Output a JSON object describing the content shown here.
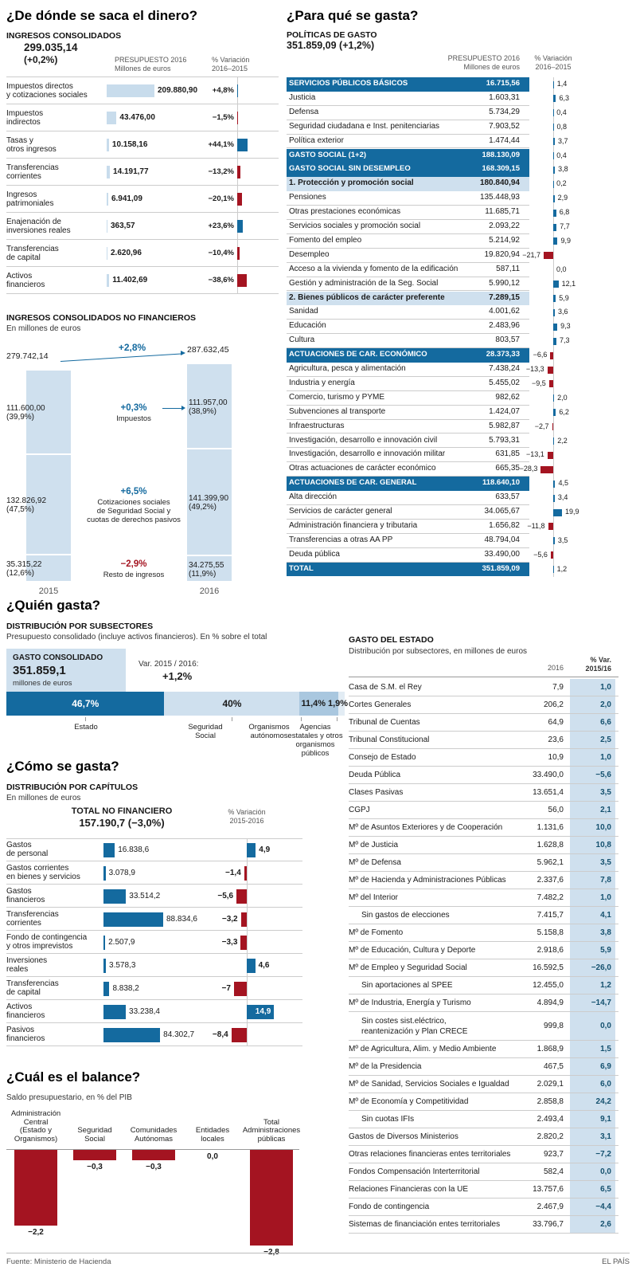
{
  "page": {
    "footer_source": "Fuente:  Ministerio de Hacienda",
    "footer_brand": "EL PAÍS"
  },
  "colors": {
    "blue": "#146a9f",
    "light_blue": "#cfe0ee",
    "bar_blue": "#c8dcec",
    "mid_blue": "#a9c7df",
    "pale_blue": "#e2ecf4",
    "red": "#a41421",
    "navy": "#14506e",
    "line": "#cccccc"
  },
  "chart_data": [
    {
      "id": "ingresos_consolidados",
      "type": "bar",
      "title": "¿De dónde se saca el dinero?",
      "subtitle": "INGRESOS CONSOLIDADOS",
      "total": "299.035,14",
      "total_variation": "(+0,2%)",
      "columns": {
        "c1a": "PRESUPUESTO 2016",
        "c1b": "Millones de euros",
        "c2a": "% Variación",
        "c2b": "2016–2015"
      },
      "rows": [
        {
          "label": "Impuestos directos\ny cotizaciones sociales",
          "value": 209880.9,
          "value_label": "209.880,90",
          "variation": 4.8,
          "variation_label": "+4,8%"
        },
        {
          "label": "Impuestos\nindirectos",
          "value": 43476.0,
          "value_label": "43.476,00",
          "variation": -1.5,
          "variation_label": "−1,5%"
        },
        {
          "label": "Tasas y\notros ingresos",
          "value": 10158.16,
          "value_label": "10.158,16",
          "variation": 44.1,
          "variation_label": "+44,1%"
        },
        {
          "label": "Transferencias\ncorrientes",
          "value": 14191.77,
          "value_label": "14.191,77",
          "variation": -13.2,
          "variation_label": "−13,2%"
        },
        {
          "label": "Ingresos\npatrimoniales",
          "value": 6941.09,
          "value_label": "6.941,09",
          "variation": -20.1,
          "variation_label": "−20,1%"
        },
        {
          "label": "Enajenación de\ninversiones reales",
          "value": 363.57,
          "value_label": "363,57",
          "variation": 23.6,
          "variation_label": "+23,6%"
        },
        {
          "label": "Transferencias\nde capital",
          "value": 2620.96,
          "value_label": "2.620,96",
          "variation": -10.4,
          "variation_label": "−10,4%"
        },
        {
          "label": "Activos\nfinancieros",
          "value": 11402.69,
          "value_label": "11.402,69",
          "variation": -38.6,
          "variation_label": "−38,6%"
        }
      ]
    },
    {
      "id": "ingresos_no_financieros",
      "type": "stacked-bar",
      "title": "INGRESOS CONSOLIDADOS NO FINANCIEROS",
      "subtitle": "En millones de euros",
      "years": [
        "2015",
        "2016"
      ],
      "total_2015": {
        "value": 279742.14,
        "label": "279.742,14"
      },
      "total_2016": {
        "value": 287632.45,
        "label": "287.632,45"
      },
      "total_variation": "+2,8%",
      "segments": [
        {
          "name": "Impuestos",
          "v2015": 111600.0,
          "l2015": "111.600,00",
          "p2015": "(39,9%)",
          "v2016": 111957.0,
          "l2016": "111.957,00",
          "p2016": "(38,9%)",
          "variation": "+0,3%",
          "negative": false,
          "arrow": true
        },
        {
          "name": "Cotizaciones sociales\nde Seguridad Social y\ncuotas de derechos pasivos",
          "v2015": 132826.92,
          "l2015": "132.826,92",
          "p2015": "(47,5%)",
          "v2016": 141399.9,
          "l2016": "141.399,90",
          "p2016": "(49,2%)",
          "variation": "+6,5%",
          "negative": false,
          "arrow": false
        },
        {
          "name": "Resto de ingresos",
          "v2015": 35315.22,
          "l2015": "35.315,22",
          "p2015": "(12,6%)",
          "v2016": 34275.55,
          "l2016": "34.275,55",
          "p2016": "(11,9%)",
          "variation": "−2,9%",
          "negative": true,
          "arrow": false
        }
      ]
    },
    {
      "id": "politicas_de_gasto",
      "type": "table",
      "title": "¿Para qué se gasta?",
      "subtitle": "POLÍTICAS DE GASTO",
      "total": "351.859,09 (+1,2%)",
      "columns": {
        "c1a": "PRESUPUESTO 2016",
        "c1b": "Millones de euros",
        "c2a": "% Variación",
        "c2b": "2016–2015"
      },
      "rows": [
        {
          "style": "header",
          "label": "SERVICIOS PÚBLICOS BÁSICOS",
          "value_label": "16.715,56",
          "variation": 1.4,
          "variation_label": "1,4"
        },
        {
          "style": "normal",
          "label": "Justicia",
          "value_label": "1.603,31",
          "variation": 6.3,
          "variation_label": "6,3"
        },
        {
          "style": "normal",
          "label": "Defensa",
          "value_label": "5.734,29",
          "variation": 0.4,
          "variation_label": "0,4"
        },
        {
          "style": "normal",
          "label": "Seguridad ciudadana e Inst. penitenciarias",
          "value_label": "7.903,52",
          "variation": 0.8,
          "variation_label": "0,8"
        },
        {
          "style": "normal",
          "label": "Política exterior",
          "value_label": "1.474,44",
          "variation": 3.7,
          "variation_label": "3,7"
        },
        {
          "style": "header",
          "label": "GASTO SOCIAL (1+2)",
          "value_label": "188.130,09",
          "variation": 0.4,
          "variation_label": "0,4"
        },
        {
          "style": "header",
          "label": "GASTO SOCIAL SIN DESEMPLEO",
          "value_label": "168.309,15",
          "variation": 3.8,
          "variation_label": "3,8"
        },
        {
          "style": "subheader",
          "label": "1. Protección y promoción social",
          "value_label": "180.840,94",
          "variation": 0.2,
          "variation_label": "0,2"
        },
        {
          "style": "normal",
          "label": "Pensiones",
          "value_label": "135.448,93",
          "variation": 2.9,
          "variation_label": "2,9"
        },
        {
          "style": "normal",
          "label": "Otras prestaciones económicas",
          "value_label": "11.685,71",
          "variation": 6.8,
          "variation_label": "6,8"
        },
        {
          "style": "normal",
          "label": "Servicios sociales y promoción social",
          "value_label": "2.093,22",
          "variation": 7.7,
          "variation_label": "7,7"
        },
        {
          "style": "normal",
          "label": "Fomento del empleo",
          "value_label": "5.214,92",
          "variation": 9.9,
          "variation_label": "9,9"
        },
        {
          "style": "normal",
          "label": "Desempleo",
          "value_label": "19.820,94",
          "variation": -21.7,
          "variation_label": "−21,7"
        },
        {
          "style": "normal",
          "label": "Acceso a la vivienda y fomento de la edificación",
          "value_label": "587,11",
          "variation": 0,
          "variation_label": "0,0"
        },
        {
          "style": "normal",
          "label": "Gestión y administración de la Seg. Social",
          "value_label": "5.990,12",
          "variation": 12.1,
          "variation_label": "12,1"
        },
        {
          "style": "subheader",
          "label": "2. Bienes públicos de carácter preferente",
          "value_label": "7.289,15",
          "variation": 5.9,
          "variation_label": "5,9"
        },
        {
          "style": "normal",
          "label": "Sanidad",
          "value_label": "4.001,62",
          "variation": 3.6,
          "variation_label": "3,6"
        },
        {
          "style": "normal",
          "label": "Educación",
          "value_label": "2.483,96",
          "variation": 9.3,
          "variation_label": "9,3"
        },
        {
          "style": "normal",
          "label": "Cultura",
          "value_label": "803,57",
          "variation": 7.3,
          "variation_label": "7,3"
        },
        {
          "style": "header",
          "label": "ACTUACIONES DE CAR. ECONÓMICO",
          "value_label": "28.373,33",
          "variation": -6.6,
          "variation_label": "−6,6"
        },
        {
          "style": "normal",
          "label": "Agricultura, pesca y alimentación",
          "value_label": "7.438,24",
          "variation": -13.3,
          "variation_label": "−13,3"
        },
        {
          "style": "normal",
          "label": "Industria y energía",
          "value_label": "5.455,02",
          "variation": -9.5,
          "variation_label": "−9,5"
        },
        {
          "style": "normal",
          "label": "Comercio, turismo y PYME",
          "value_label": "982,62",
          "variation": 2.0,
          "variation_label": "2,0"
        },
        {
          "style": "normal",
          "label": "Subvenciones al transporte",
          "value_label": "1.424,07",
          "variation": 6.2,
          "variation_label": "6,2"
        },
        {
          "style": "normal",
          "label": "Infraestructuras",
          "value_label": "5.982,87",
          "variation": -2.7,
          "variation_label": "−2,7"
        },
        {
          "style": "normal",
          "label": "Investigación, desarrollo e innovación civil",
          "value_label": "5.793,31",
          "variation": 2.2,
          "variation_label": "2,2"
        },
        {
          "style": "normal",
          "label": "Investigación, desarrollo e innovación militar",
          "value_label": "631,85",
          "variation": -13.1,
          "variation_label": "−13,1"
        },
        {
          "style": "normal",
          "label": "Otras actuaciones de carácter económico",
          "value_label": "665,35",
          "variation": -28.3,
          "variation_label": "−28,3"
        },
        {
          "style": "header",
          "label": "ACTUACIONES DE CAR. GENERAL",
          "value_label": "118.640,10",
          "variation": 4.5,
          "variation_label": "4,5"
        },
        {
          "style": "normal",
          "label": "Alta dirección",
          "value_label": "633,57",
          "variation": 3.4,
          "variation_label": "3,4"
        },
        {
          "style": "normal",
          "label": "Servicios de carácter general",
          "value_label": "34.065,67",
          "variation": 19.9,
          "variation_label": "19,9"
        },
        {
          "style": "normal",
          "label": "Administración financiera y tributaria",
          "value_label": "1.656,82",
          "variation": -11.8,
          "variation_label": "−11,8"
        },
        {
          "style": "normal",
          "label": "Transferencias a otras AA PP",
          "value_label": "48.794,04",
          "variation": 3.5,
          "variation_label": "3,5"
        },
        {
          "style": "normal",
          "label": "Deuda pública",
          "value_label": "33.490,00",
          "variation": -5.6,
          "variation_label": "−5,6"
        },
        {
          "style": "header",
          "label": "TOTAL",
          "value_label": "351.859,09",
          "variation": 1.2,
          "variation_label": "1,2"
        }
      ]
    },
    {
      "id": "quien_gasta",
      "type": "stacked-bar",
      "title": "¿Quién gasta?",
      "subtitle": "DISTRIBUCIÓN POR SUBSECTORES",
      "note": "Presupuesto consolidado (incluye activos financieros). En % sobre el total",
      "total_kicker": "GASTO CONSOLIDADO",
      "total": "351.859,1",
      "total_unit": "millones de euros",
      "var_label": "Var. 2015 / 2016:",
      "var_value": "+1,2%",
      "segments": [
        {
          "name": "Estado",
          "pct": 46.7,
          "label": "46,7%"
        },
        {
          "name": "Seguridad\nSocial",
          "pct": 40.0,
          "label": "40%"
        },
        {
          "name": "Organismos\nautónomos",
          "pct": 11.4,
          "label": "11,4%"
        },
        {
          "name": "Agencias\nestatales y otros\norganismos públicos",
          "pct": 1.9,
          "label": "1,9%"
        }
      ]
    },
    {
      "id": "como_se_gasta",
      "type": "bar",
      "title": "¿Cómo se gasta?",
      "subtitle": "DISTRIBUCIÓN POR CAPÍTULOS",
      "note": "En millones de euros",
      "total_line1": "TOTAL NO FINANCIERO",
      "total_line2": "157.190,7 (−3,0%)",
      "columns": {
        "c2a": "% Variación",
        "c2b": "2015-2016"
      },
      "rows": [
        {
          "label": "Gastos\nde personal",
          "value": 16838.6,
          "value_label": "16.838,6",
          "variation": 4.9,
          "variation_label": "4,9"
        },
        {
          "label": "Gastos corrientes\nen bienes y servicios",
          "value": 3078.9,
          "value_label": "3.078,9",
          "variation": -1.4,
          "variation_label": "−1,4"
        },
        {
          "label": "Gastos\nfinancieros",
          "value": 33514.2,
          "value_label": "33.514,2",
          "variation": -5.6,
          "variation_label": "−5,6"
        },
        {
          "label": "Transferencias\ncorrientes",
          "value": 88834.6,
          "value_label": "88.834,6",
          "variation": -3.2,
          "variation_label": "−3,2"
        },
        {
          "label": "Fondo de contingencia\ny otros imprevistos",
          "value": 2507.9,
          "value_label": "2.507,9",
          "variation": -3.3,
          "variation_label": "−3,3"
        },
        {
          "label": "Inversiones\nreales",
          "value": 3578.3,
          "value_label": "3.578,3",
          "variation": 4.6,
          "variation_label": "4,6"
        },
        {
          "label": "Transferencias\nde capital",
          "value": 8838.2,
          "value_label": "8.838,2",
          "variation": -7,
          "variation_label": "−7"
        },
        {
          "label": "Activos\nfinancieros",
          "value": 33238.4,
          "value_label": "33.238,4",
          "variation": 14.9,
          "variation_label": "14,9"
        },
        {
          "label": "Pasivos\nfinancieros",
          "value": 84302.7,
          "value_label": "84.302,7",
          "variation": -8.4,
          "variation_label": "−8,4"
        }
      ]
    },
    {
      "id": "balance",
      "type": "bar",
      "title": "¿Cuál es el balance?",
      "subtitle": "Saldo presupuestario, en % del PIB",
      "categories": [
        "Administración\nCentral\n(Estado y\nOrganismos)",
        "Seguridad\nSocial",
        "Comunidades\nAutónomas",
        "Entidades\nlocales",
        "Total\nAdministraciones\npúblicas"
      ],
      "values": [
        -2.2,
        -0.3,
        -0.3,
        0.0,
        -2.8
      ],
      "value_labels": [
        "−2,2",
        "−0,3",
        "−0,3",
        "0,0",
        "−2,8"
      ]
    },
    {
      "id": "gasto_del_estado",
      "type": "table",
      "title": "GASTO DEL ESTADO",
      "subtitle": "Distribución por subsectores, en millones de euros",
      "columns": {
        "c1": "2016",
        "c2a": "% Var.",
        "c2b": "2015/16"
      },
      "rows": [
        {
          "label": "Casa de S.M. el Rey",
          "value": "7,9",
          "var": "1,0"
        },
        {
          "label": "Cortes Generales",
          "value": "206,2",
          "var": "2,0"
        },
        {
          "label": "Tribunal de Cuentas",
          "value": "64,9",
          "var": "6,6"
        },
        {
          "label": "Tribunal Constitucional",
          "value": "23,6",
          "var": "2,5"
        },
        {
          "label": "Consejo de Estado",
          "value": "10,9",
          "var": "1,0"
        },
        {
          "label": "Deuda Pública",
          "value": "33.490,0",
          "var": "−5,6"
        },
        {
          "label": "Clases Pasivas",
          "value": "13.651,4",
          "var": "3,5"
        },
        {
          "label": "CGPJ",
          "value": "56,0",
          "var": "2,1"
        },
        {
          "label": "Mº de Asuntos Exteriores y de Cooperación",
          "value": "1.131,6",
          "var": "10,0"
        },
        {
          "label": "Mº de Justicia",
          "value": "1.628,8",
          "var": "10,8"
        },
        {
          "label": "Mº de Defensa",
          "value": "5.962,1",
          "var": "3,5"
        },
        {
          "label": "Mº de Hacienda y Administraciones Públicas",
          "value": "2.337,6",
          "var": "7,8"
        },
        {
          "label": "Mº del Interior",
          "value": "7.482,2",
          "var": "1,0"
        },
        {
          "label": "Sin gastos de elecciones",
          "value": "7.415,7",
          "var": "4,1",
          "indent": true
        },
        {
          "label": "Mº de Fomento",
          "value": "5.158,8",
          "var": "3,8"
        },
        {
          "label": "Mº de Educación, Cultura y Deporte",
          "value": "2.918,6",
          "var": "5,9"
        },
        {
          "label": "Mº de Empleo y Seguridad Social",
          "value": "16.592,5",
          "var": "−26,0"
        },
        {
          "label": "Sin aportaciones al SPEE",
          "value": "12.455,0",
          "var": "1,2",
          "indent": true
        },
        {
          "label": "Mº de Industria, Energía y Turismo",
          "value": "4.894,9",
          "var": "−14,7"
        },
        {
          "label": "Sin costes sist.eléctrico,\nreantenización y Plan CRECE",
          "value": "999,8",
          "var": "0,0",
          "indent": true,
          "tall": true
        },
        {
          "label": "Mº de Agricultura, Alim. y Medio Ambiente",
          "value": "1.868,9",
          "var": "1,5"
        },
        {
          "label": "Mº de la Presidencia",
          "value": "467,5",
          "var": "6,9"
        },
        {
          "label": "Mº de Sanidad, Servicios Sociales e Igualdad",
          "value": "2.029,1",
          "var": "6,0"
        },
        {
          "label": "Mº de Economía y Competitividad",
          "value": "2.858,8",
          "var": "24,2"
        },
        {
          "label": "Sin cuotas IFIs",
          "value": "2.493,4",
          "var": "9,1",
          "indent": true
        },
        {
          "label": "Gastos de Diversos Ministerios",
          "value": "2.820,2",
          "var": "3,1"
        },
        {
          "label": "Otras relaciones financieras entes territoriales",
          "value": "923,7",
          "var": "−7,2"
        },
        {
          "label": "Fondos Compensación Interterritorial",
          "value": "582,4",
          "var": "0,0"
        },
        {
          "label": "Relaciones Financieras con la UE",
          "value": "13.757,6",
          "var": "6,5"
        },
        {
          "label": "Fondo de contingencia",
          "value": "2.467,9",
          "var": "−4,4"
        },
        {
          "label": "Sistemas de financiación entes territoriales",
          "value": "33.796,7",
          "var": "2,6"
        }
      ]
    }
  ]
}
